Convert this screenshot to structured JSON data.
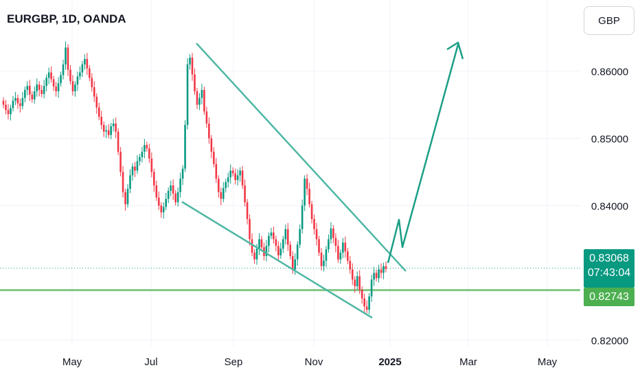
{
  "header": {
    "title": "EURGBP, 1D, OANDA"
  },
  "currency_button": {
    "label": "GBP"
  },
  "price_tags": {
    "current_price": "0.83068",
    "countdown": "07:43:04",
    "support_price": "0.82743"
  },
  "colors": {
    "up": "#089981",
    "down": "#f23645",
    "pattern": "#4fb7a4",
    "projection": "#1a9e85",
    "support": "#81c784",
    "grid": "#f0f3fa",
    "text": "#131722"
  },
  "chart_data": {
    "type": "candlestick",
    "symbol": "EURGBP",
    "timeframe": "1D",
    "source": "OANDA",
    "ylim": [
      0.818,
      0.867
    ],
    "y_ticks": [
      "0.86000",
      "0.85000",
      "0.84000",
      "0.82000"
    ],
    "x_ticks": [
      "May",
      "Jul",
      "Sep",
      "Nov",
      "2025",
      "Mar",
      "May"
    ],
    "current_price": 0.83068,
    "support_level": 0.82743,
    "candle_closes": [
      0.855,
      0.8542,
      0.8536,
      0.8545,
      0.8556,
      0.856,
      0.8552,
      0.8548,
      0.856,
      0.8572,
      0.8578,
      0.8565,
      0.8558,
      0.857,
      0.858,
      0.8572,
      0.8566,
      0.8578,
      0.859,
      0.8598,
      0.8588,
      0.8577,
      0.857,
      0.8582,
      0.8594,
      0.861,
      0.8635,
      0.8602,
      0.8585,
      0.857,
      0.858,
      0.8592,
      0.8598,
      0.861,
      0.8618,
      0.8604,
      0.859,
      0.8576,
      0.8562,
      0.8546,
      0.8532,
      0.852,
      0.851,
      0.8512,
      0.8505,
      0.8518,
      0.8522,
      0.851,
      0.848,
      0.845,
      0.842,
      0.8402,
      0.8425,
      0.8445,
      0.8458,
      0.8452,
      0.8466,
      0.8472,
      0.848,
      0.849,
      0.8485,
      0.847,
      0.845,
      0.843,
      0.8412,
      0.84,
      0.839,
      0.8398,
      0.841,
      0.8422,
      0.843,
      0.8418,
      0.8405,
      0.842,
      0.844,
      0.8455,
      0.852,
      0.861,
      0.862,
      0.8595,
      0.857,
      0.855,
      0.856,
      0.8572,
      0.854,
      0.8522,
      0.85,
      0.848,
      0.8462,
      0.844,
      0.842,
      0.841,
      0.8426,
      0.8435,
      0.8442,
      0.8452,
      0.8448,
      0.8438,
      0.8445,
      0.8452,
      0.843,
      0.8405,
      0.838,
      0.835,
      0.833,
      0.832,
      0.8336,
      0.835,
      0.8338,
      0.8325,
      0.834,
      0.8355,
      0.836,
      0.835,
      0.834,
      0.8326,
      0.8336,
      0.835,
      0.8365,
      0.8342,
      0.8325,
      0.8305,
      0.832,
      0.8342,
      0.8365,
      0.84,
      0.844,
      0.8425,
      0.8402,
      0.838,
      0.8365,
      0.835,
      0.833,
      0.831,
      0.8318,
      0.8335,
      0.835,
      0.8366,
      0.8352,
      0.834,
      0.832,
      0.833,
      0.8345,
      0.8332,
      0.8318,
      0.8305,
      0.829,
      0.828,
      0.8295,
      0.8275,
      0.8262,
      0.825,
      0.8245,
      0.8265,
      0.829,
      0.83,
      0.8292,
      0.8305,
      0.83,
      0.831,
      0.8306
    ]
  },
  "drawings": {
    "pattern_upper_line": [
      [
        0.8627
      ],
      [
        0.831
      ]
    ],
    "pattern_lower_line": [
      [
        0.8395
      ],
      [
        0.8225
      ]
    ],
    "breakout_arrow": "projected bullish move"
  }
}
